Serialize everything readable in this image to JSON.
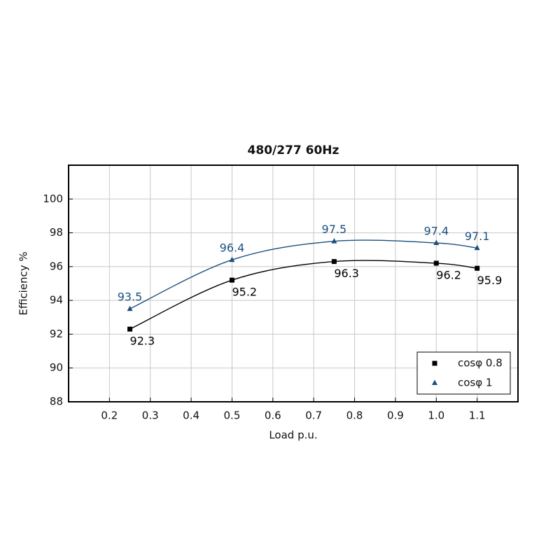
{
  "chart_data": {
    "type": "line",
    "title": "480/277 60Hz",
    "x_label": "Load p.u.",
    "y_label": "Efficiency %",
    "x": [
      0.25,
      0.5,
      0.75,
      1.0,
      1.1
    ],
    "series": [
      {
        "name": "cosφ 0.8",
        "color": "#000000",
        "marker": "square",
        "values": [
          92.3,
          95.2,
          96.3,
          96.2,
          95.9
        ]
      },
      {
        "name": "cosφ 1",
        "color": "#1b4f7c",
        "marker": "triangle",
        "values": [
          93.5,
          96.4,
          97.5,
          97.4,
          97.1
        ]
      }
    ],
    "xlim": [
      0.1,
      1.2
    ],
    "xticks": [
      0.2,
      0.3,
      0.4,
      0.5,
      0.6,
      0.7,
      0.8,
      0.9,
      {
        "value": 1,
        "label": "1.0"
      },
      1.1
    ],
    "ylim": [
      88,
      102
    ],
    "yticks": [
      88,
      90,
      92,
      94,
      96,
      98,
      100
    ],
    "grid": true,
    "legend": "lower right"
  }
}
